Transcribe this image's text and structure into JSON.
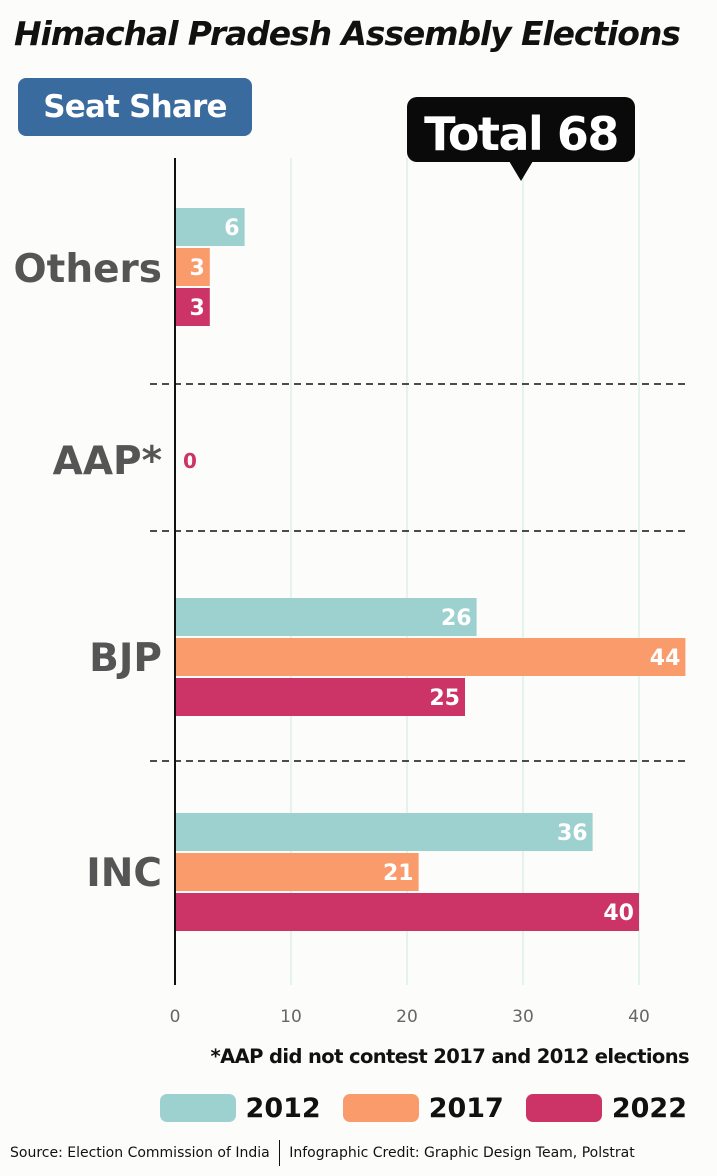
{
  "title": "Himachal Pradesh Assembly Elections",
  "subtitle": "Seat Share",
  "total_callout": "Total 68",
  "footnote": "*AAP did not contest 2017 and 2012 elections",
  "source": "Source: Election Commission of India",
  "credit": "Infographic Credit: Graphic Design Team, Polstrat",
  "chart_data": {
    "type": "bar",
    "orientation": "horizontal",
    "categories": [
      "Others",
      "AAP*",
      "BJP",
      "INC"
    ],
    "series": [
      {
        "name": "2012",
        "color": "#9dd1cf",
        "values": [
          6,
          null,
          26,
          36
        ]
      },
      {
        "name": "2017",
        "color": "#f99b6b",
        "values": [
          3,
          null,
          44,
          21
        ]
      },
      {
        "name": "2022",
        "color": "#cc3366",
        "values": [
          3,
          0,
          25,
          40
        ]
      }
    ],
    "x_ticks": [
      0,
      10,
      20,
      30,
      40
    ],
    "xlim": [
      0,
      44
    ],
    "grid": true,
    "legend_position": "bottom-right",
    "label_color": "#555555"
  }
}
